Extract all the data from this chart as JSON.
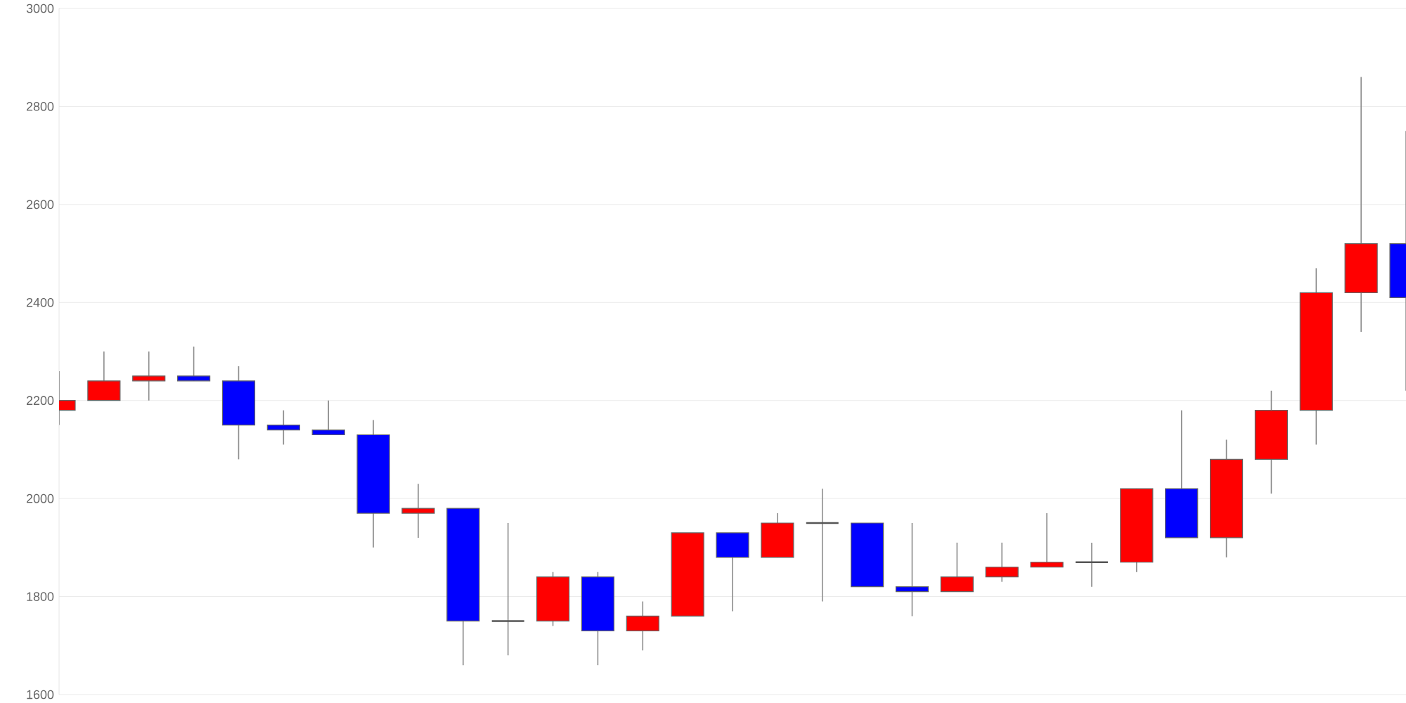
{
  "chart_data": {
    "type": "candlestick",
    "categories": [
      null,
      null,
      null,
      null,
      null,
      null,
      null,
      null,
      null,
      null,
      null,
      null,
      null,
      null,
      null,
      null,
      null,
      null,
      null,
      null,
      null,
      null,
      null,
      null,
      null,
      null,
      null,
      null,
      null,
      null,
      null
    ],
    "ohlc": [
      [
        2180,
        2260,
        2150,
        2200
      ],
      [
        2200,
        2300,
        2200,
        2240
      ],
      [
        2240,
        2300,
        2200,
        2250
      ],
      [
        2250,
        2310,
        2240,
        2240
      ],
      [
        2240,
        2270,
        2080,
        2150
      ],
      [
        2150,
        2180,
        2110,
        2140
      ],
      [
        2140,
        2200,
        2130,
        2130
      ],
      [
        2130,
        2160,
        1900,
        1970
      ],
      [
        1970,
        2030,
        1920,
        1980
      ],
      [
        1980,
        1980,
        1660,
        1750
      ],
      [
        1750,
        1950,
        1680,
        1750
      ],
      [
        1750,
        1850,
        1740,
        1840
      ],
      [
        1840,
        1850,
        1660,
        1730
      ],
      [
        1730,
        1790,
        1690,
        1760
      ],
      [
        1760,
        1930,
        1760,
        1930
      ],
      [
        1930,
        1930,
        1770,
        1880
      ],
      [
        1880,
        1970,
        1880,
        1950
      ],
      [
        1950,
        2020,
        1790,
        1950
      ],
      [
        1950,
        1950,
        1820,
        1820
      ],
      [
        1820,
        1950,
        1760,
        1810
      ],
      [
        1810,
        1910,
        1810,
        1840
      ],
      [
        1840,
        1910,
        1830,
        1860
      ],
      [
        1860,
        1970,
        1860,
        1870
      ],
      [
        1870,
        1910,
        1820,
        1870
      ],
      [
        1870,
        2020,
        1850,
        2020
      ],
      [
        2020,
        2180,
        1920,
        1920
      ],
      [
        1920,
        2120,
        1880,
        2080
      ],
      [
        2080,
        2220,
        2010,
        2180
      ],
      [
        2180,
        2470,
        2110,
        2420
      ],
      [
        2420,
        2860,
        2340,
        2520
      ],
      [
        2520,
        2750,
        2220,
        2410
      ]
    ],
    "colors": [
      "#ff0000",
      "#ff0000",
      "#ff0000",
      "#0000ff",
      "#0000ff",
      "#0000ff",
      "#0000ff",
      "#0000ff",
      "#ff0000",
      "#0000ff",
      "#555555",
      "#ff0000",
      "#0000ff",
      "#ff0000",
      "#ff0000",
      "#0000ff",
      "#ff0000",
      "#555555",
      "#0000ff",
      "#0000ff",
      "#ff0000",
      "#ff0000",
      "#ff0000",
      "#555555",
      "#ff0000",
      "#0000ff",
      "#ff0000",
      "#ff0000",
      "#ff0000",
      "#ff0000",
      "#0000ff"
    ],
    "ylim": [
      1600,
      3000
    ],
    "yticks": [
      1600,
      1800,
      2000,
      2200,
      2400,
      2600,
      2800,
      3000
    ],
    "grid": "y",
    "tick_labels": "y"
  }
}
